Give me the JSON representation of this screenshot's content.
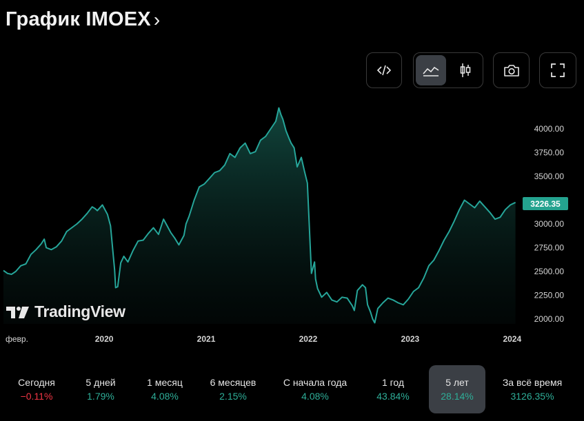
{
  "header": {
    "title": "График IMOEX",
    "chevron": "›"
  },
  "toolbar": {
    "embed_icon": "code-icon",
    "area_chart_icon": "area-chart-icon",
    "candles_icon": "candlestick-icon",
    "snapshot_icon": "camera-icon",
    "fullscreen_icon": "fullscreen-icon"
  },
  "chart_data": {
    "type": "area",
    "symbol": "IMOEX",
    "last_price_label": "3226.35",
    "x_tick_labels": [
      "февр.",
      "2020",
      "2021",
      "2022",
      "2023",
      "2024"
    ],
    "y_tick_labels": [
      "4000.00",
      "3750.00",
      "3500.00",
      "3250.00",
      "3000.00",
      "2750.00",
      "2500.00",
      "2250.00",
      "2000.00"
    ],
    "ylim": [
      1930,
      4280
    ],
    "xlim": [
      2019.08,
      2024.15
    ],
    "line_color": "#26a69a",
    "series": [
      {
        "name": "IMOEX",
        "x": [
          2019.08,
          2019.12,
          2019.16,
          2019.2,
          2019.25,
          2019.3,
          2019.35,
          2019.4,
          2019.45,
          2019.48,
          2019.5,
          2019.55,
          2019.6,
          2019.65,
          2019.7,
          2019.75,
          2019.8,
          2019.85,
          2019.9,
          2019.95,
          2019.98,
          2020.0,
          2020.05,
          2020.1,
          2020.13,
          2020.17,
          2020.18,
          2020.2,
          2020.23,
          2020.26,
          2020.3,
          2020.35,
          2020.4,
          2020.45,
          2020.5,
          2020.55,
          2020.6,
          2020.65,
          2020.68,
          2020.72,
          2020.76,
          2020.8,
          2020.85,
          2020.87,
          2020.9,
          2020.95,
          2021.0,
          2021.05,
          2021.1,
          2021.15,
          2021.2,
          2021.25,
          2021.3,
          2021.35,
          2021.4,
          2021.45,
          2021.5,
          2021.55,
          2021.6,
          2021.65,
          2021.7,
          2021.75,
          2021.78,
          2021.8,
          2021.82,
          2021.85,
          2021.88,
          2021.9,
          2021.93,
          2021.96,
          2022.0,
          2022.03,
          2022.06,
          2022.1,
          2022.13,
          2022.14,
          2022.16,
          2022.2,
          2022.25,
          2022.3,
          2022.35,
          2022.4,
          2022.45,
          2022.5,
          2022.52,
          2022.55,
          2022.6,
          2022.63,
          2022.65,
          2022.68,
          2022.7,
          2022.72,
          2022.75,
          2022.8,
          2022.85,
          2022.9,
          2022.95,
          2023.0,
          2023.05,
          2023.1,
          2023.15,
          2023.2,
          2023.25,
          2023.3,
          2023.35,
          2023.4,
          2023.45,
          2023.5,
          2023.55,
          2023.6,
          2023.65,
          2023.7,
          2023.75,
          2023.8,
          2023.85,
          2023.9,
          2023.95,
          2024.0,
          2024.05,
          2024.1
        ],
        "values": [
          2510,
          2480,
          2470,
          2500,
          2560,
          2580,
          2680,
          2730,
          2790,
          2840,
          2750,
          2730,
          2760,
          2820,
          2920,
          2960,
          3000,
          3050,
          3110,
          3180,
          3160,
          3140,
          3200,
          3100,
          2980,
          2520,
          2330,
          2340,
          2590,
          2660,
          2600,
          2720,
          2820,
          2830,
          2900,
          2960,
          2890,
          3050,
          2990,
          2910,
          2850,
          2780,
          2880,
          3000,
          3080,
          3250,
          3390,
          3420,
          3480,
          3540,
          3560,
          3620,
          3740,
          3700,
          3800,
          3850,
          3740,
          3760,
          3880,
          3920,
          4000,
          4080,
          4220,
          4150,
          4100,
          3980,
          3900,
          3850,
          3800,
          3600,
          3700,
          3560,
          3430,
          2480,
          2600,
          2420,
          2320,
          2230,
          2280,
          2200,
          2180,
          2230,
          2220,
          2140,
          2090,
          2300,
          2360,
          2330,
          2150,
          2070,
          2000,
          1960,
          2110,
          2170,
          2220,
          2200,
          2170,
          2150,
          2210,
          2290,
          2330,
          2430,
          2560,
          2620,
          2720,
          2830,
          2920,
          3030,
          3150,
          3250,
          3210,
          3170,
          3240,
          3180,
          3120,
          3050,
          3070,
          3150,
          3200,
          3226.35
        ]
      }
    ]
  },
  "watermark": {
    "text": "TradingView"
  },
  "periods": [
    {
      "label": "Сегодня",
      "value": "−0.11%",
      "color": "#f23645"
    },
    {
      "label": "5 дней",
      "value": "1.79%",
      "color": "#2eae98"
    },
    {
      "label": "1 месяц",
      "value": "4.08%",
      "color": "#2eae98"
    },
    {
      "label": "6 месяцев",
      "value": "2.15%",
      "color": "#2eae98"
    },
    {
      "label": "С начала года",
      "value": "4.08%",
      "color": "#2eae98"
    },
    {
      "label": "1 год",
      "value": "43.84%",
      "color": "#2eae98"
    },
    {
      "label": "5 лет",
      "value": "28.14%",
      "color": "#2eae98"
    },
    {
      "label": "За всё время",
      "value": "3126.35%",
      "color": "#2eae98"
    }
  ],
  "active_period": 6
}
